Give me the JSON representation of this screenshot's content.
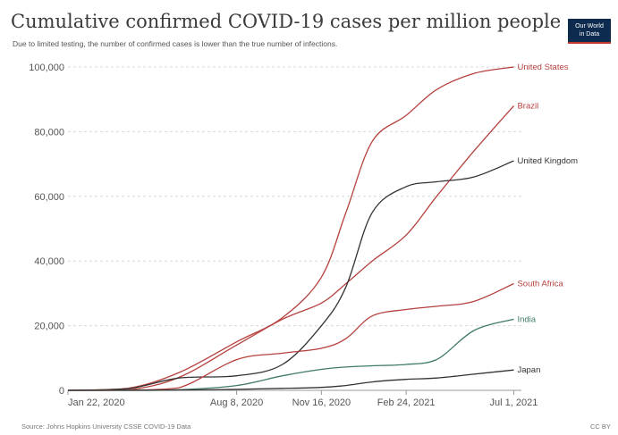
{
  "header": {
    "title": "Cumulative confirmed COVID-19 cases per million people",
    "subtitle": "Due to limited testing, the number of confirmed cases is lower than the true number of infections.",
    "logo_line1": "Our World",
    "logo_line2": "in Data"
  },
  "footer": {
    "source": "Source: Johns Hopkins University CSSE COVID-19 Data",
    "license": "CC BY"
  },
  "colors": {
    "red": "#b5413e",
    "dark": "#333333",
    "grid": "#d9d9d9",
    "axis": "#999999",
    "india": "#3f7a6b"
  },
  "chart_data": {
    "type": "line",
    "title": "Cumulative confirmed COVID-19 cases per million people",
    "subtitle": "Due to limited testing, the number of confirmed cases is lower than the true number of infections.",
    "x_ticks": [
      "Jan 22, 2020",
      "Aug 8, 2020",
      "Nov 16, 2020",
      "Feb 24, 2021",
      "Jul 1, 2021"
    ],
    "y_ticks": [
      "0",
      "20,000",
      "40,000",
      "60,000",
      "80,000",
      "100,000"
    ],
    "ylim": [
      0,
      100000
    ],
    "xlim": [
      "2020-01-22",
      "2021-07-10"
    ],
    "grid": "horizontal dashed",
    "series": [
      {
        "name": "United States",
        "color": "#b5413e",
        "x": [
          "2020-01-22",
          "2020-04-01",
          "2020-06-01",
          "2020-08-08",
          "2020-10-01",
          "2020-11-16",
          "2020-12-15",
          "2021-01-15",
          "2021-02-24",
          "2021-04-01",
          "2021-05-15",
          "2021-07-01"
        ],
        "y": [
          0,
          600,
          5500,
          15000,
          22500,
          35000,
          55000,
          77000,
          85000,
          93000,
          98000,
          100000
        ]
      },
      {
        "name": "Brazil",
        "color": "#b5413e",
        "x": [
          "2020-01-22",
          "2020-04-01",
          "2020-06-01",
          "2020-08-08",
          "2020-10-01",
          "2020-11-16",
          "2020-12-15",
          "2021-01-15",
          "2021-02-24",
          "2021-04-01",
          "2021-05-15",
          "2021-07-01"
        ],
        "y": [
          0,
          100,
          4000,
          14000,
          22000,
          27000,
          33000,
          40000,
          48000,
          60000,
          74000,
          88000
        ]
      },
      {
        "name": "United Kingdom",
        "color": "#333333",
        "x": [
          "2020-01-22",
          "2020-04-01",
          "2020-06-01",
          "2020-08-08",
          "2020-10-01",
          "2020-11-16",
          "2020-12-15",
          "2021-01-15",
          "2021-02-24",
          "2021-04-01",
          "2021-05-15",
          "2021-07-01"
        ],
        "y": [
          0,
          500,
          3800,
          4500,
          8000,
          20000,
          32000,
          55000,
          63000,
          64500,
          66000,
          71000
        ]
      },
      {
        "name": "South Africa",
        "color": "#b5413e",
        "x": [
          "2020-01-22",
          "2020-04-01",
          "2020-06-01",
          "2020-08-08",
          "2020-10-01",
          "2020-11-16",
          "2020-12-15",
          "2021-01-15",
          "2021-02-24",
          "2021-04-01",
          "2021-05-15",
          "2021-07-01"
        ],
        "y": [
          0,
          50,
          800,
          9500,
          11500,
          13000,
          16000,
          23000,
          25000,
          26000,
          27500,
          33000
        ]
      },
      {
        "name": "India",
        "color": "#3f7a6b",
        "x": [
          "2020-01-22",
          "2020-04-01",
          "2020-06-01",
          "2020-08-08",
          "2020-10-01",
          "2020-11-16",
          "2020-12-15",
          "2021-01-15",
          "2021-02-24",
          "2021-04-01",
          "2021-05-15",
          "2021-07-01"
        ],
        "y": [
          0,
          0,
          200,
          1500,
          4500,
          6500,
          7200,
          7600,
          8000,
          9500,
          18500,
          22000
        ]
      },
      {
        "name": "Japan",
        "color": "#333333",
        "x": [
          "2020-01-22",
          "2020-04-01",
          "2020-06-01",
          "2020-08-08",
          "2020-10-01",
          "2020-11-16",
          "2020-12-15",
          "2021-01-15",
          "2021-02-24",
          "2021-04-01",
          "2021-05-15",
          "2021-07-01"
        ],
        "y": [
          0,
          0,
          100,
          300,
          600,
          900,
          1500,
          2600,
          3400,
          3800,
          5000,
          6300
        ]
      }
    ]
  }
}
